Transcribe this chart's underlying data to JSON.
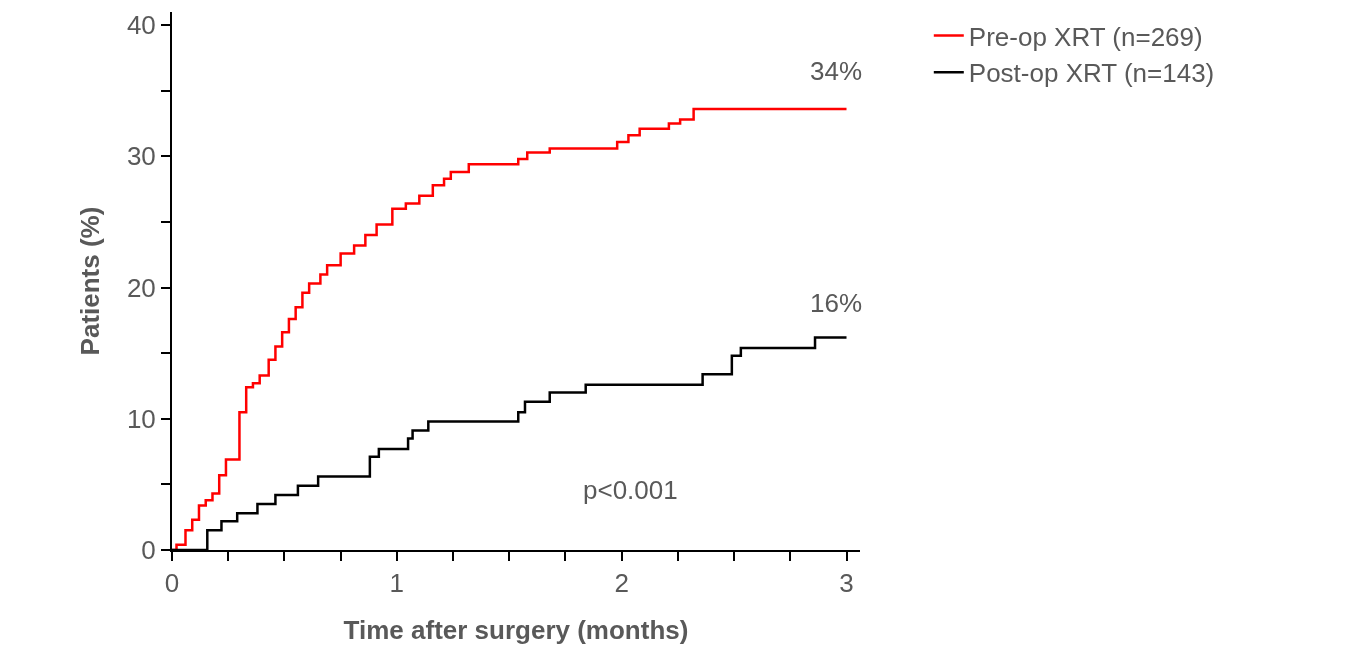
{
  "chart_data": {
    "type": "step",
    "xlabel": "Time after surgery (months)",
    "ylabel": "Patients (%)",
    "xlim": [
      0,
      3.06
    ],
    "xticks": [
      0,
      {
        "value": 0.25,
        "label": null
      },
      {
        "value": 0.5,
        "label": null
      },
      {
        "value": 0.75,
        "label": null
      },
      1,
      {
        "value": 1.25,
        "label": null
      },
      {
        "value": 1.5,
        "label": null
      },
      {
        "value": 1.75,
        "label": null
      },
      2,
      {
        "value": 2.25,
        "label": null
      },
      {
        "value": 2.5,
        "label": null
      },
      {
        "value": 2.75,
        "label": null
      },
      3
    ],
    "ylim": [
      0,
      41
    ],
    "yticks": [
      0,
      {
        "value": 5,
        "label": null
      },
      10,
      {
        "value": 15,
        "label": null
      },
      20,
      {
        "value": 25,
        "label": null
      },
      30,
      {
        "value": 35,
        "label": null
      },
      40
    ],
    "grid": false,
    "legend": "top right",
    "marker": "none",
    "line_style": "solid",
    "series": [
      {
        "name": "Pre-op XRT (n=269)",
        "color": "#ff0000",
        "x": [
          0,
          0.02,
          0.06,
          0.09,
          0.12,
          0.15,
          0.18,
          0.21,
          0.24,
          0.3,
          0.33,
          0.36,
          0.39,
          0.43,
          0.46,
          0.49,
          0.52,
          0.55,
          0.58,
          0.61,
          0.66,
          0.69,
          0.75,
          0.81,
          0.86,
          0.91,
          0.98,
          1.04,
          1.1,
          1.16,
          1.21,
          1.24,
          1.32,
          1.54,
          1.58,
          1.68,
          1.98,
          2.03,
          2.08,
          2.21,
          2.26,
          2.32,
          3
        ],
        "values": [
          0,
          0.4,
          1.5,
          2.3,
          3.4,
          3.8,
          4.3,
          5.7,
          6.9,
          10.5,
          12.4,
          12.7,
          13.3,
          14.5,
          15.5,
          16.6,
          17.6,
          18.5,
          19.6,
          20.3,
          21,
          21.7,
          22.6,
          23.2,
          24,
          24.8,
          26,
          26.4,
          27,
          27.8,
          28.3,
          28.8,
          29.4,
          29.8,
          30.3,
          30.6,
          31.1,
          31.6,
          32.1,
          32.5,
          32.8,
          33.6,
          33.6
        ]
      },
      {
        "name": "Post-op XRT (n=143)",
        "color": "#000000",
        "x": [
          0,
          0.157,
          0.22,
          0.29,
          0.38,
          0.46,
          0.56,
          0.65,
          0.88,
          0.92,
          1.05,
          1.07,
          1.14,
          1.54,
          1.57,
          1.68,
          1.84,
          2.36,
          2.49,
          2.53,
          2.86,
          3
        ],
        "values": [
          0,
          1.5,
          2.2,
          2.8,
          3.5,
          4.2,
          4.9,
          5.6,
          7.1,
          7.7,
          8.5,
          9.1,
          9.8,
          10.5,
          11.3,
          12,
          12.6,
          13.4,
          14.8,
          15.4,
          16.2,
          16.2
        ]
      }
    ],
    "annotations": [
      "34%",
      "16%",
      "p<0.001"
    ]
  }
}
